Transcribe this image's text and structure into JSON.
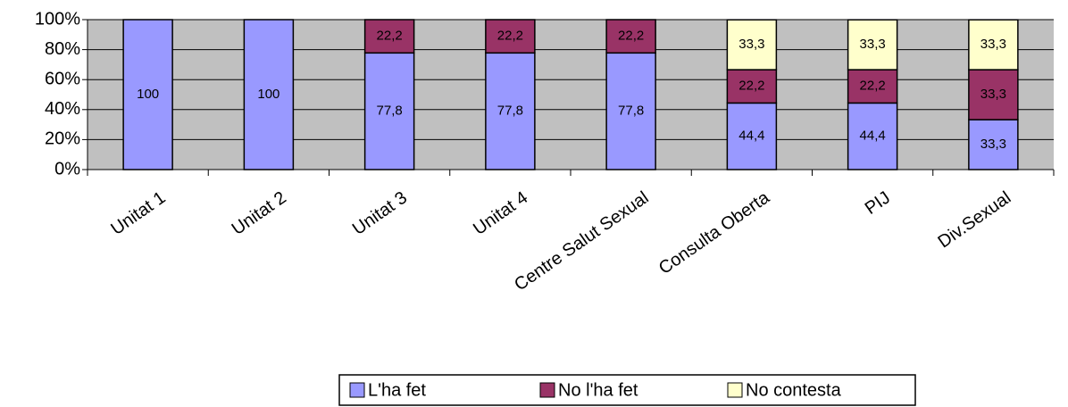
{
  "chart_data": {
    "type": "stacked_bar",
    "categories": [
      "Unitat 1",
      "Unitat 2",
      "Unitat 3",
      "Unitat 4",
      "Centre Salut Sexual",
      "Consulta Oberta",
      "PIJ",
      "Div.Sexual"
    ],
    "series": [
      {
        "name": "L'ha fet",
        "color": "#9999ff",
        "values": [
          100,
          100,
          77.8,
          77.8,
          77.8,
          44.4,
          44.4,
          33.3
        ],
        "value_labels": [
          "100",
          "100",
          "77,8",
          "77,8",
          "77,8",
          "44,4",
          "44,4",
          "33,3"
        ]
      },
      {
        "name": "No l'ha fet",
        "color": "#993366",
        "values": [
          0,
          0,
          22.2,
          22.2,
          22.2,
          22.2,
          22.2,
          33.3
        ],
        "value_labels": [
          null,
          null,
          "22,2",
          "22,2",
          "22,2",
          "22,2",
          "22,2",
          "33,3"
        ]
      },
      {
        "name": "No contesta",
        "color": "#ffffcc",
        "values": [
          0,
          0,
          0,
          0,
          0,
          33.3,
          33.3,
          33.3
        ],
        "value_labels": [
          null,
          null,
          null,
          null,
          null,
          "33,3",
          "33,3",
          "33,3"
        ]
      }
    ],
    "ylim": [
      0,
      100
    ],
    "yticks": [
      {
        "value": 0,
        "label": "0%"
      },
      {
        "value": 20,
        "label": "20%"
      },
      {
        "value": 40,
        "label": "40%"
      },
      {
        "value": 60,
        "label": "60%"
      },
      {
        "value": 80,
        "label": "80%"
      },
      {
        "value": 100,
        "label": "100%"
      }
    ],
    "grid": true,
    "legend": "bottom"
  }
}
